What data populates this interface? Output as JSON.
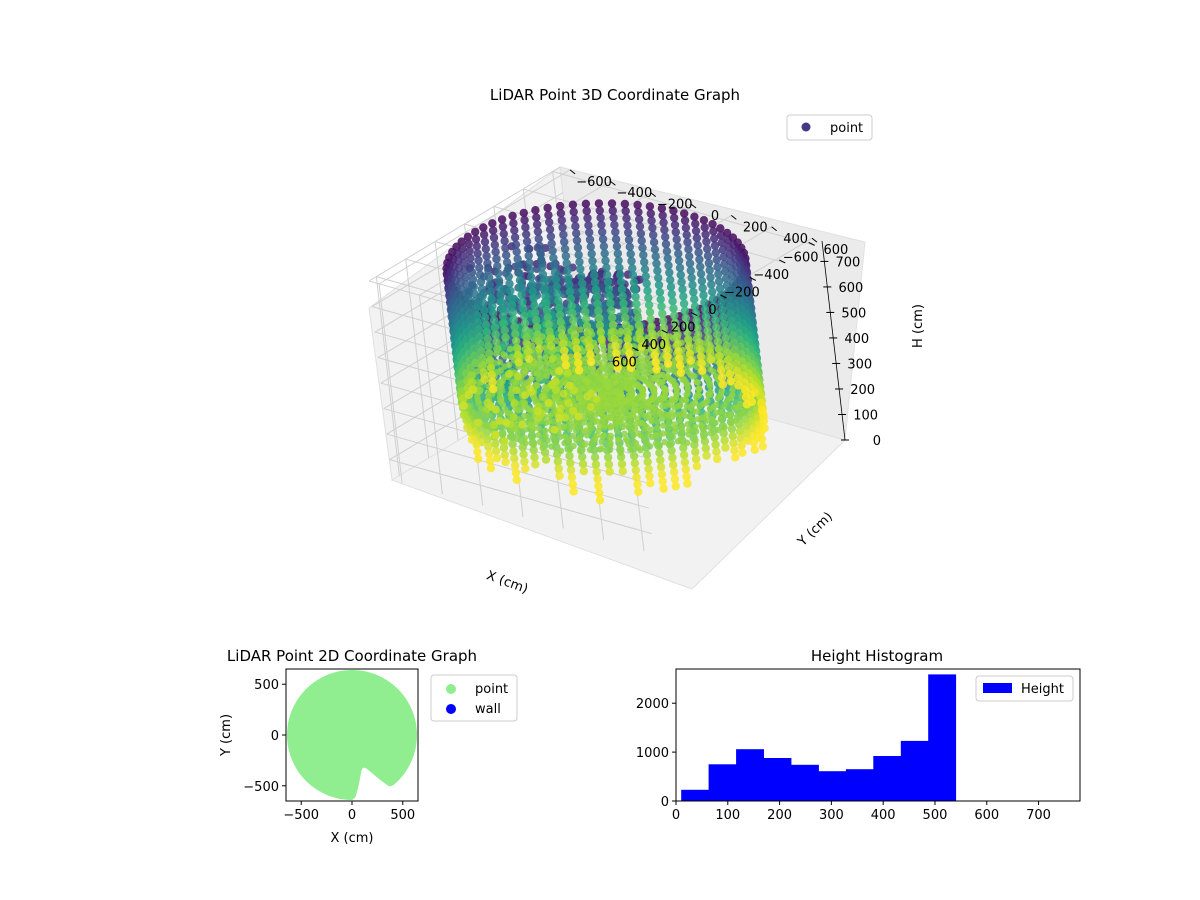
{
  "chart_data": [
    {
      "type": "scatter",
      "projection": "3d",
      "title": "LiDAR Point 3D Coordinate Graph",
      "xlabel": "X (cm)",
      "ylabel": "Y (cm)",
      "zlabel": "H (cm)",
      "xlim": [
        -650,
        650
      ],
      "ylim": [
        -650,
        650
      ],
      "zlim": [
        0,
        780
      ],
      "z_inverted": true,
      "xticks": [
        "−600",
        "−400",
        "−200",
        "0",
        "200",
        "400",
        "600"
      ],
      "yticks": [
        "−600",
        "−400",
        "−200",
        "0",
        "200",
        "400",
        "600"
      ],
      "zticks": [
        "0",
        "100",
        "200",
        "300",
        "400",
        "500",
        "600",
        "700"
      ],
      "grid": true,
      "colormap": "viridis",
      "legend": {
        "position": "top-right",
        "entries": [
          {
            "label": "point",
            "color": "#443983"
          }
        ]
      },
      "shape": {
        "description_hidden": true,
        "rim_radius": 600,
        "floor_height": 520,
        "columns": 72
      }
    },
    {
      "type": "scatter",
      "title": "LiDAR Point 2D Coordinate Graph",
      "xlabel": "X (cm)",
      "ylabel": "Y (cm)",
      "xlim": [
        -650,
        650
      ],
      "ylim": [
        -650,
        650
      ],
      "xticks": [
        "−500",
        "0",
        "500"
      ],
      "yticks": [
        "500",
        "0",
        "−500"
      ],
      "series": [
        {
          "name": "point",
          "color": "#90ee90"
        },
        {
          "name": "wall",
          "color": "#0000ff"
        }
      ],
      "legend": {
        "position": "outside-right"
      }
    },
    {
      "type": "bar",
      "title": "Height Histogram",
      "xlim": [
        0,
        780
      ],
      "ylim": [
        0,
        2700
      ],
      "xticks": [
        "0",
        "100",
        "200",
        "300",
        "400",
        "500",
        "600",
        "700"
      ],
      "yticks": [
        "0",
        "1000",
        "2000"
      ],
      "bin_edges": [
        10,
        63,
        116,
        169,
        222,
        275,
        328,
        381,
        434,
        487,
        540
      ],
      "values": [
        230,
        750,
        1060,
        880,
        740,
        610,
        650,
        920,
        1230,
        2590
      ],
      "series": [
        {
          "name": "Height",
          "color": "#0000ff"
        }
      ],
      "legend": {
        "position": "top-right"
      }
    }
  ]
}
